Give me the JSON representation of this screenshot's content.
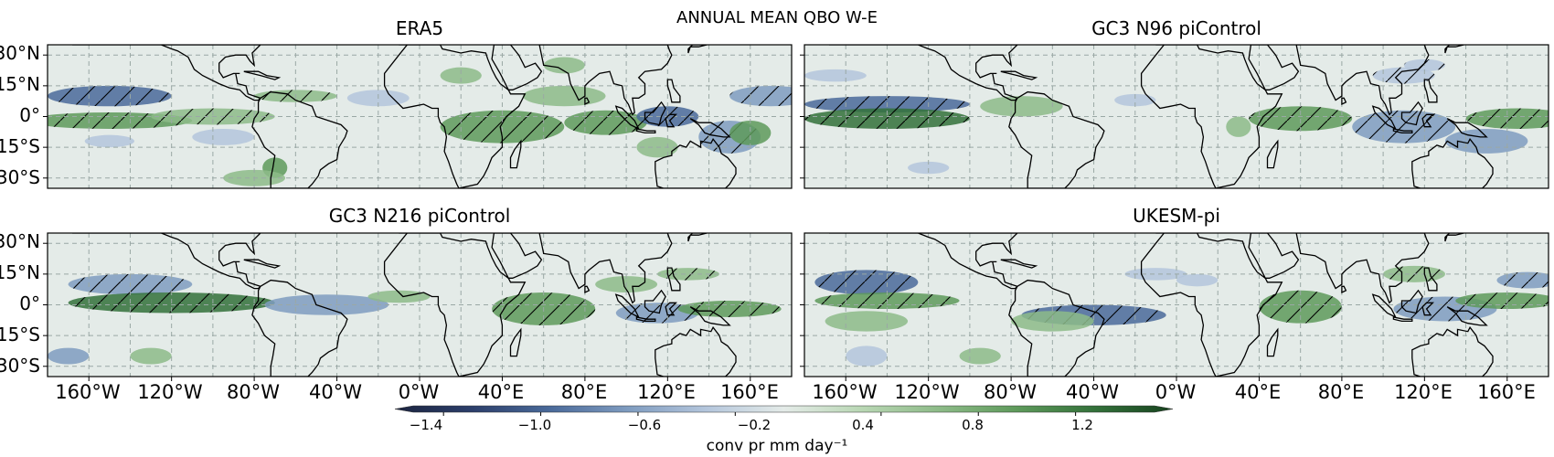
{
  "figure": {
    "title": "ANNUAL MEAN QBO W-E",
    "panels": [
      {
        "title": "ERA5"
      },
      {
        "title": "GC3 N96 piControl"
      },
      {
        "title": "GC3 N216 piControl"
      },
      {
        "title": "UKESM-pi"
      }
    ],
    "lat_labels": [
      "30°N",
      "15°N",
      "0°",
      "15°S",
      "30°S"
    ],
    "lat_values": [
      30,
      15,
      0,
      -15,
      -30
    ],
    "lon_labels": [
      "160°W",
      "120°W",
      "80°W",
      "40°W",
      "0°W",
      "40°E",
      "80°E",
      "120°E",
      "160°E"
    ],
    "lon_values": [
      -160,
      -120,
      -80,
      -40,
      0,
      40,
      80,
      120,
      160
    ],
    "colorbar": {
      "label": "conv pr mm day⁻¹",
      "ticks": [
        "−1.4",
        "−1.0",
        "−0.6",
        "−0.2",
        "0.4",
        "0.8",
        "1.2"
      ],
      "tick_values": [
        -1.4,
        -1.0,
        -0.6,
        -0.2,
        0.4,
        0.8,
        1.2
      ],
      "range": [
        -1.6,
        1.6
      ],
      "colors": [
        "#1b2440",
        "#2c3f6b",
        "#4a6a9a",
        "#7f9cc0",
        "#b4c6dc",
        "#e4ebe8",
        "#b9d7b4",
        "#8dbb88",
        "#5e9a5b",
        "#33713a",
        "#17431f"
      ]
    },
    "map": {
      "extent_lon": [
        -180,
        180
      ],
      "extent_lat": [
        -35,
        35
      ],
      "ocean_color": "#e4ebe8",
      "coastline_color": "#000000",
      "gridline_color": "#9aa8a5"
    }
  }
}
